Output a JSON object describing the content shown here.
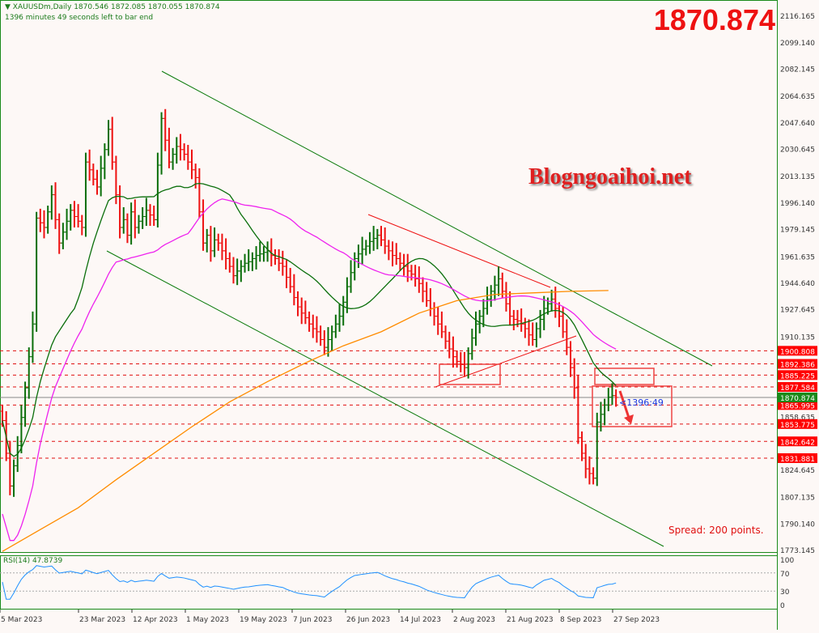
{
  "header": {
    "symbol_line": "XAUUSDm,Daily  1870.546 1872.085 1870.055 1870.874",
    "timer_line": "1396 minutes 49 seconds left to bar end"
  },
  "overlay": {
    "big_price": "1870.874",
    "watermark": "Blogngoaihoi.net",
    "spread": "Spread: 200 points.",
    "bar_timer": "<1396:49"
  },
  "colors": {
    "bull": "#0a6e0a",
    "bear": "#ee1111",
    "ma_fast": "#0a6e0a",
    "ma_mid": "#ee22ee",
    "ma_slow": "#ff8c00",
    "level": "#e01010",
    "rsi": "#1e90ff",
    "frame": "#1a8a1a"
  },
  "price_axis": [
    "2116.165",
    "2099.140",
    "2082.145",
    "2064.635",
    "2047.640",
    "2030.645",
    "2013.135",
    "1996.140",
    "1979.145",
    "1961.635",
    "1944.640",
    "1927.645",
    "1910.135",
    "1858.635",
    "1824.645",
    "1807.135",
    "1790.140",
    "1773.145"
  ],
  "levels": [
    "1900.808",
    "1892.386",
    "1885.225",
    "1877.584",
    "1865.995",
    "1853.775",
    "1842.642",
    "1831.881"
  ],
  "current_price": "1870.874",
  "date_axis": [
    "5 Mar 2023",
    "23 Mar 2023",
    "12 Apr 2023",
    "1 May 2023",
    "19 May 2023",
    "7 Jun 2023",
    "26 Jun 2023",
    "14 Jul 2023",
    "2 Aug 2023",
    "21 Aug 2023",
    "8 Sep 2023",
    "27 Sep 2023"
  ],
  "rsi": {
    "title": "RSI(14) 47.8739",
    "axis": [
      "100",
      "70",
      "30",
      "0"
    ],
    "levels": [
      70,
      30
    ]
  },
  "chart_data": {
    "type": "ohlc",
    "symbol": "XAUUSDm",
    "timeframe": "Daily",
    "ylim": [
      1773.145,
      2116.165
    ],
    "closes": [
      1856,
      1835,
      1814,
      1827,
      1840,
      1858,
      1877,
      1897,
      1918,
      1986,
      1983,
      1980,
      1990,
      2001,
      1985,
      1970,
      1977,
      1984,
      1991,
      1987,
      1984,
      1980,
      2022,
      2017,
      2011,
      2006,
      2018,
      2030,
      2043,
      2022,
      2001,
      1980,
      1985,
      1975,
      1990,
      1980,
      1984,
      1987,
      1991,
      1988,
      1985,
      2020,
      2050,
      2036,
      2022,
      2027,
      2032,
      2030,
      2027,
      2022,
      2017,
      2012,
      1990,
      1970,
      1975,
      1965,
      1972,
      1970,
      1965,
      1960,
      1955,
      1949,
      1952,
      1955,
      1957,
      1958,
      1960,
      1962,
      1963,
      1964,
      1965,
      1962,
      1960,
      1957,
      1955,
      1948,
      1942,
      1935,
      1929,
      1925,
      1922,
      1918,
      1915,
      1913,
      1908,
      1903,
      1908,
      1913,
      1918,
      1923,
      1932,
      1942,
      1951,
      1960,
      1963,
      1966,
      1968,
      1971,
      1973,
      1975,
      1972,
      1968,
      1965,
      1962,
      1960,
      1957,
      1955,
      1952,
      1950,
      1947,
      1944,
      1939,
      1933,
      1928,
      1923,
      1918,
      1913,
      1907,
      1902,
      1897,
      1894,
      1892,
      1890,
      1899,
      1909,
      1918,
      1923,
      1928,
      1934,
      1939,
      1943,
      1947,
      1939,
      1931,
      1923,
      1921,
      1920,
      1918,
      1915,
      1911,
      1908,
      1915,
      1921,
      1928,
      1931,
      1934,
      1928,
      1923,
      1913,
      1903,
      1890,
      1877,
      1845,
      1835,
      1825,
      1822,
      1819,
      1855,
      1860,
      1866,
      1871,
      1872,
      1870.874
    ],
    "ma_slow_every10": [
      1772,
      1786,
      1800,
      1818,
      1835,
      1852,
      1868,
      1881,
      1893,
      1904,
      1913,
      1925,
      1933,
      1937,
      1938,
      1939,
      1939.5
    ],
    "rsi_last": 47.8739
  }
}
